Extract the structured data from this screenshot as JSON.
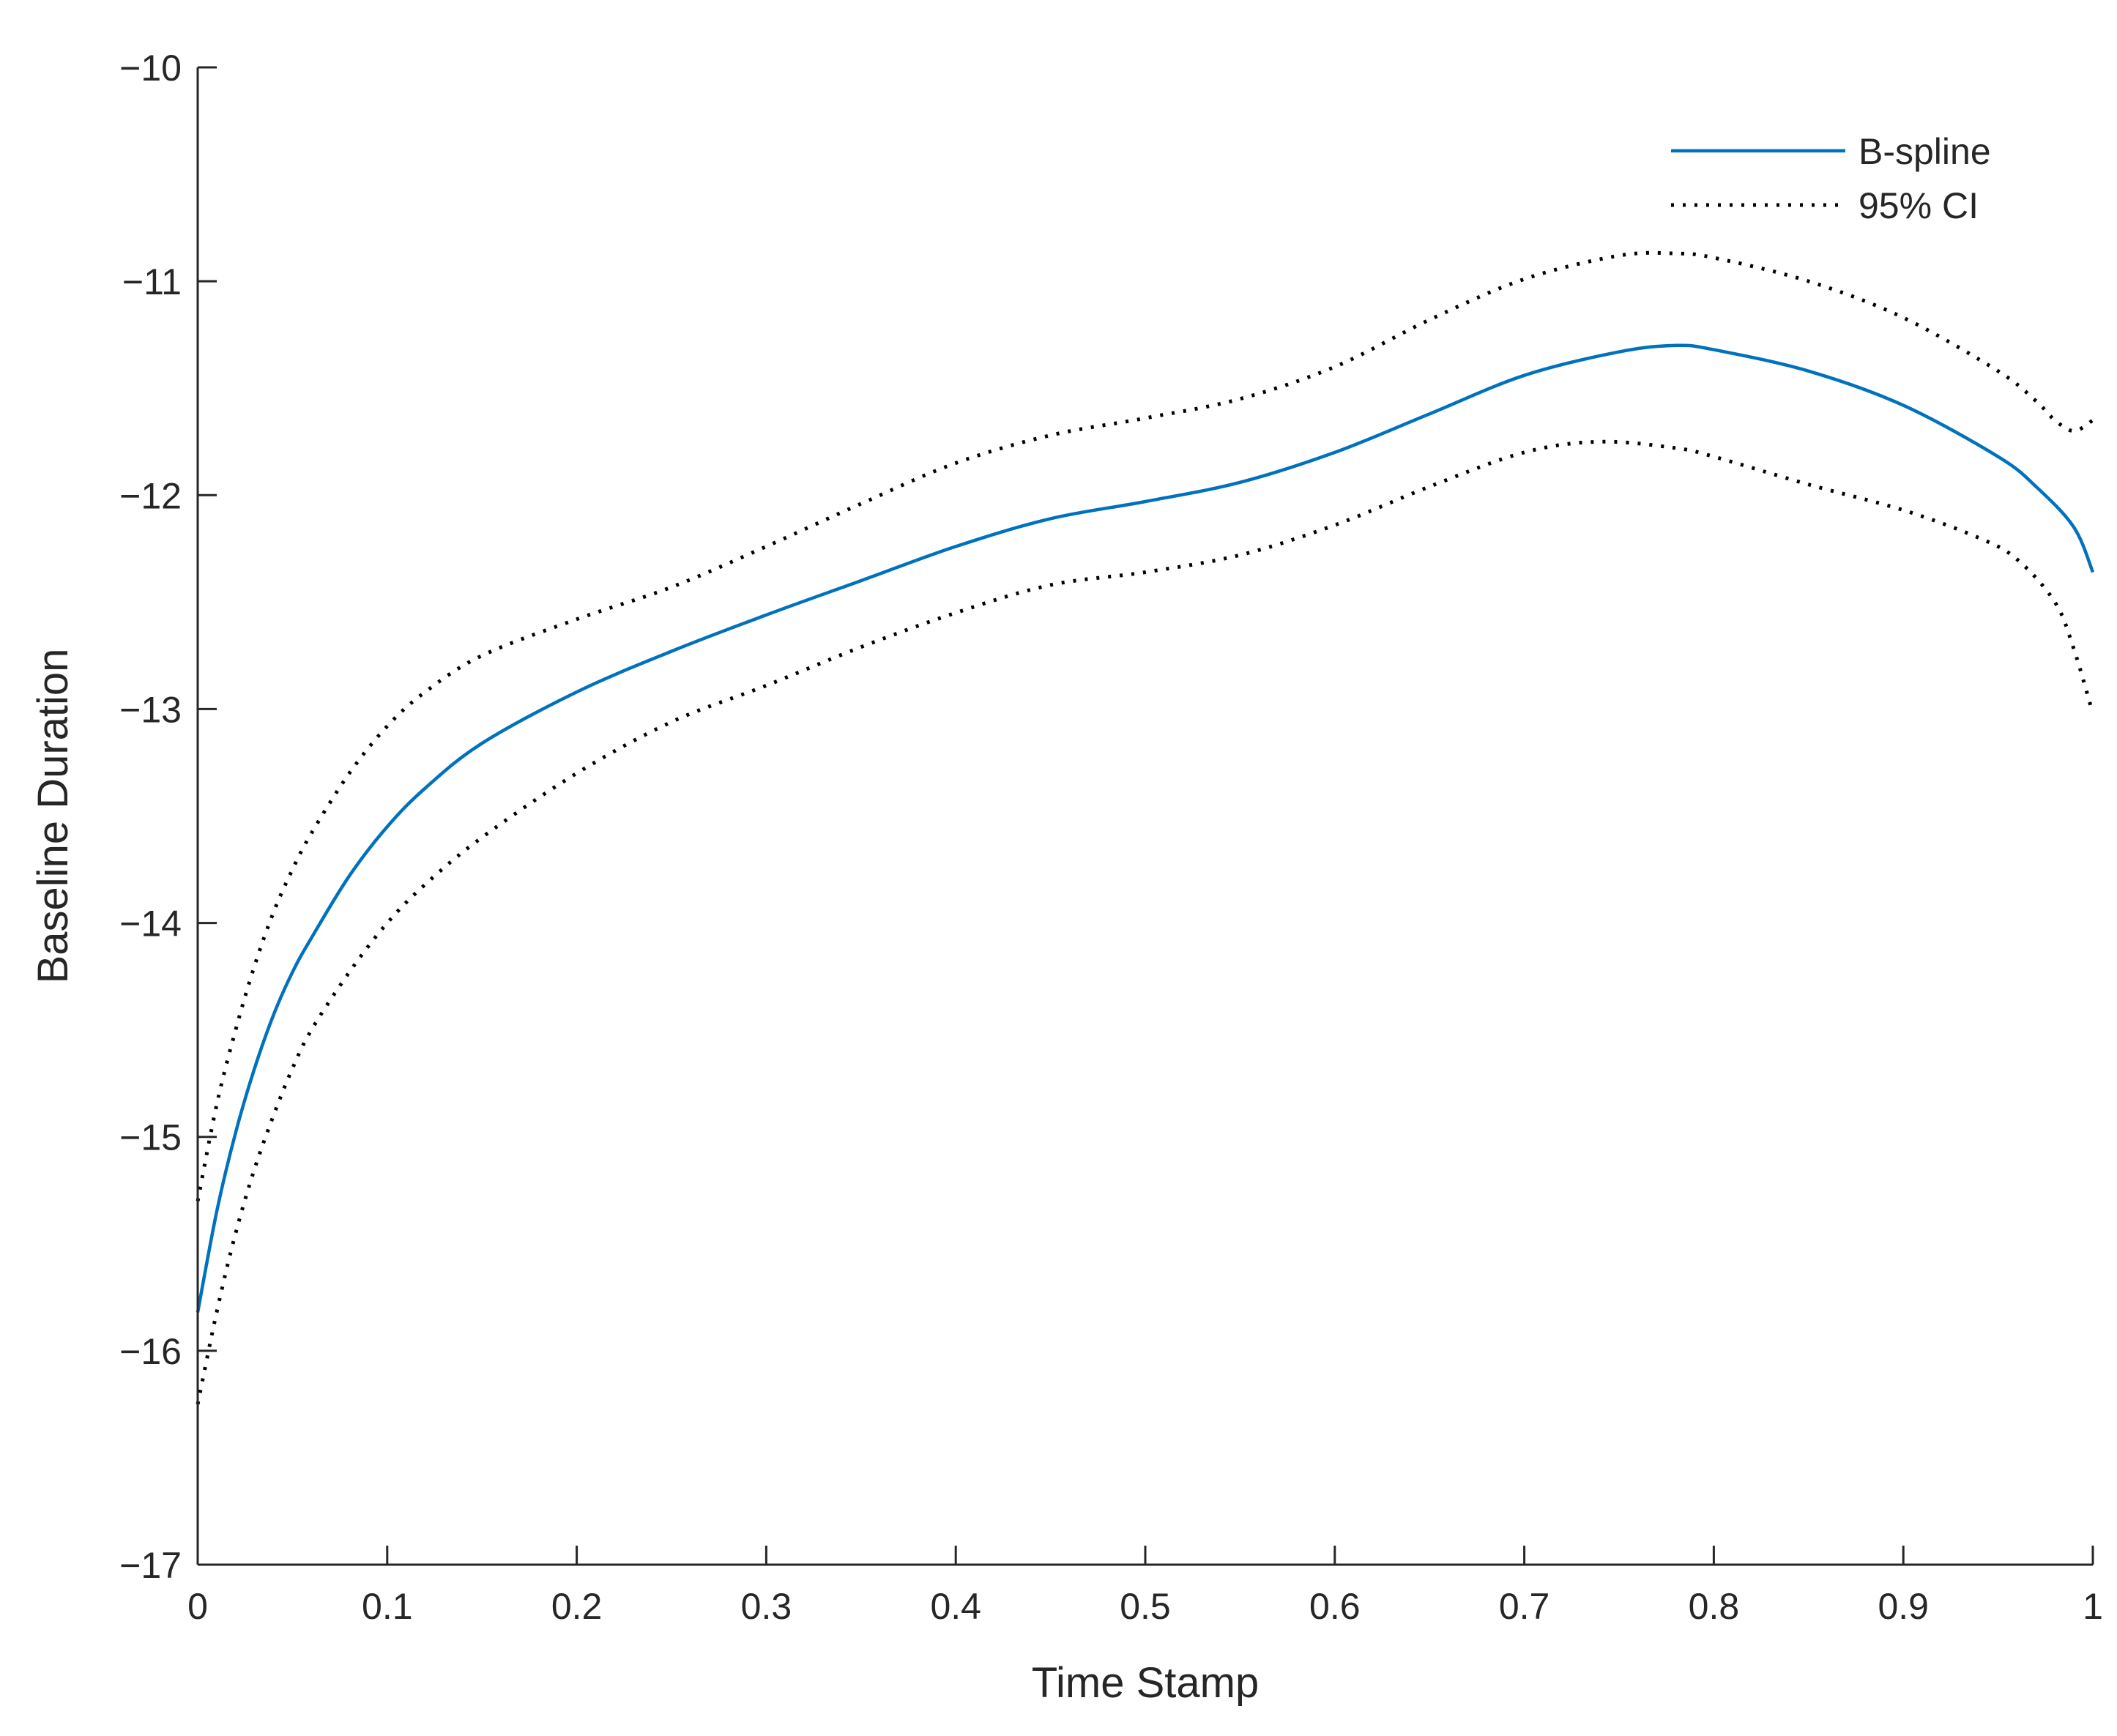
{
  "chart_data": {
    "type": "line",
    "title": "",
    "xlabel": "Time Stamp",
    "ylabel": "Baseline Duration",
    "xlim": [
      0,
      1
    ],
    "ylim": [
      -17,
      -10
    ],
    "xticks": [
      0,
      0.1,
      0.2,
      0.3,
      0.4,
      0.5,
      0.6,
      0.7,
      0.8,
      0.9,
      1
    ],
    "xtick_labels": [
      "0",
      "0.1",
      "0.2",
      "0.3",
      "0.4",
      "0.5",
      "0.6",
      "0.7",
      "0.8",
      "0.9",
      "1"
    ],
    "yticks": [
      -10,
      -11,
      -12,
      -13,
      -14,
      -15,
      -16,
      -17
    ],
    "ytick_labels": [
      "−10",
      "−11",
      "−12",
      "−13",
      "−14",
      "−15",
      "−16",
      "−17"
    ],
    "grid": false,
    "legend_position": "top-right",
    "series": [
      {
        "name": "B-spline",
        "style": "solid",
        "color": "#0072BD",
        "x": [
          0,
          0.01,
          0.02,
          0.03,
          0.04,
          0.05,
          0.06,
          0.08,
          0.1,
          0.12,
          0.15,
          0.2,
          0.25,
          0.3,
          0.35,
          0.4,
          0.45,
          0.5,
          0.55,
          0.6,
          0.65,
          0.7,
          0.75,
          0.78,
          0.8,
          0.85,
          0.9,
          0.95,
          0.97,
          0.99,
          1.0
        ],
        "y": [
          -15.82,
          -15.35,
          -14.98,
          -14.68,
          -14.43,
          -14.23,
          -14.07,
          -13.78,
          -13.55,
          -13.37,
          -13.16,
          -12.92,
          -12.73,
          -12.56,
          -12.4,
          -12.24,
          -12.11,
          -12.03,
          -11.94,
          -11.8,
          -11.62,
          -11.44,
          -11.33,
          -11.3,
          -11.32,
          -11.42,
          -11.58,
          -11.82,
          -11.96,
          -12.15,
          -12.36
        ]
      },
      {
        "name": "95% CI",
        "style": "dotted",
        "color": "#000000",
        "x": [
          0,
          0.01,
          0.02,
          0.03,
          0.04,
          0.05,
          0.06,
          0.08,
          0.1,
          0.12,
          0.15,
          0.2,
          0.25,
          0.3,
          0.35,
          0.4,
          0.45,
          0.5,
          0.55,
          0.6,
          0.65,
          0.7,
          0.75,
          0.78,
          0.8,
          0.85,
          0.9,
          0.95,
          0.97,
          0.98,
          0.99,
          1.0
        ],
        "y": [
          -15.3,
          -14.85,
          -14.5,
          -14.2,
          -13.95,
          -13.75,
          -13.58,
          -13.3,
          -13.08,
          -12.92,
          -12.75,
          -12.58,
          -12.43,
          -12.24,
          -12.04,
          -11.85,
          -11.72,
          -11.64,
          -11.55,
          -11.4,
          -11.18,
          -10.99,
          -10.88,
          -10.87,
          -10.89,
          -11.0,
          -11.17,
          -11.42,
          -11.56,
          -11.65,
          -11.7,
          -11.65
        ]
      },
      {
        "name": "95% CI",
        "style": "dotted",
        "color": "#000000",
        "legend": false,
        "x": [
          0,
          0.01,
          0.02,
          0.03,
          0.04,
          0.05,
          0.06,
          0.08,
          0.1,
          0.12,
          0.15,
          0.2,
          0.25,
          0.3,
          0.35,
          0.4,
          0.45,
          0.5,
          0.55,
          0.6,
          0.65,
          0.7,
          0.74,
          0.78,
          0.8,
          0.85,
          0.9,
          0.94,
          0.96,
          0.98,
          0.99,
          1.0
        ],
        "y": [
          -16.25,
          -15.82,
          -15.45,
          -15.15,
          -14.9,
          -14.68,
          -14.5,
          -14.23,
          -14.0,
          -13.82,
          -13.6,
          -13.3,
          -13.06,
          -12.89,
          -12.71,
          -12.55,
          -12.42,
          -12.36,
          -12.28,
          -12.14,
          -11.96,
          -11.8,
          -11.75,
          -11.78,
          -11.82,
          -11.95,
          -12.07,
          -12.2,
          -12.3,
          -12.5,
          -12.72,
          -13.02
        ]
      }
    ]
  }
}
